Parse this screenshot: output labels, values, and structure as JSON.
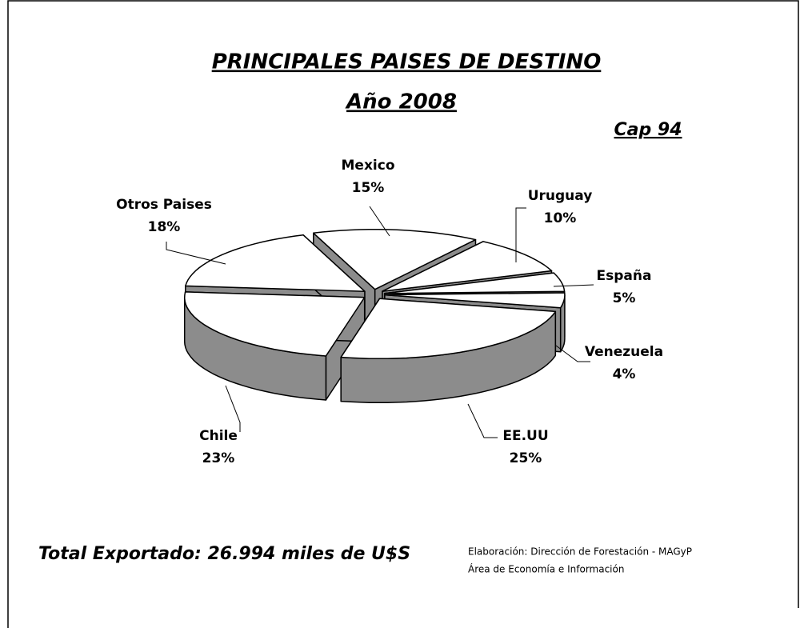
{
  "chart_data": {
    "type": "pie3d",
    "title": "PRINCIPALES PAISES DE DESTINO",
    "subtitle": "Año 2008",
    "annotation": "Cap 94",
    "categories": [
      "Mexico",
      "Uruguay",
      "España",
      "Venezuela",
      "EE.UU",
      "Chile",
      "Otros Paises"
    ],
    "values": [
      15,
      10,
      5,
      4,
      25,
      23,
      18
    ],
    "value_labels": [
      "15%",
      "10%",
      "5%",
      "4%",
      "25%",
      "23%",
      "18%"
    ],
    "top_color": "#ffffff",
    "side_color": "#8c8c8c",
    "total": "Total Exportado: 26.994 miles de U$S",
    "source": [
      "Elaboración: Dirección de Forestación - MAGyP",
      "Área de Economía e Información"
    ]
  }
}
